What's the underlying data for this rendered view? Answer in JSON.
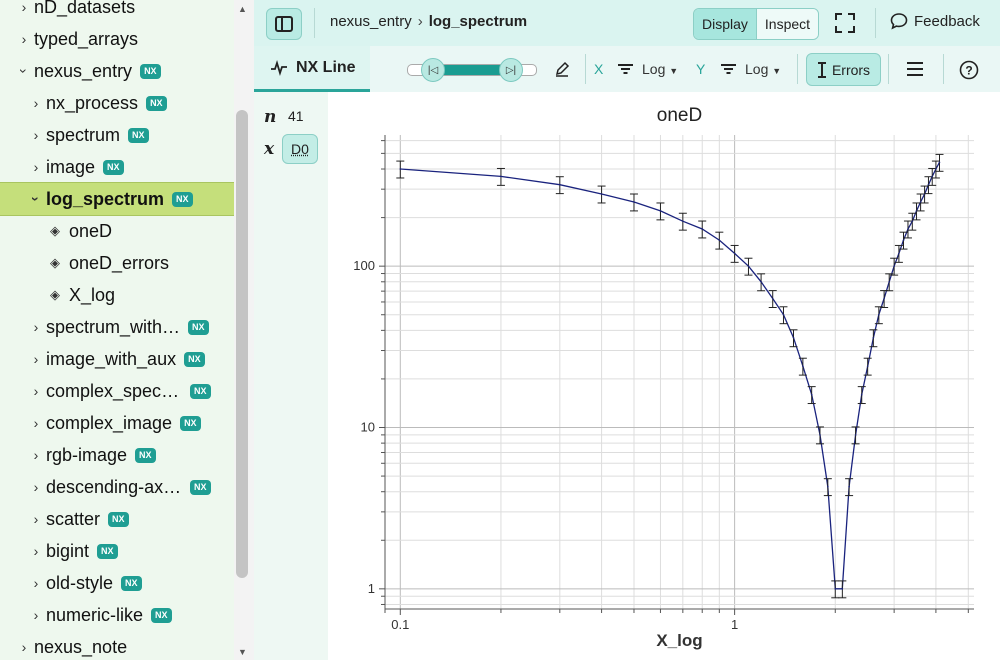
{
  "sidebar": {
    "items": [
      {
        "label": "nD_datasets",
        "indent": 0,
        "expanded": false,
        "nx": false,
        "kind": "group",
        "selected": false
      },
      {
        "label": "typed_arrays",
        "indent": 0,
        "expanded": false,
        "nx": false,
        "kind": "group",
        "selected": false
      },
      {
        "label": "nexus_entry",
        "indent": 0,
        "expanded": true,
        "nx": true,
        "kind": "group",
        "selected": false
      },
      {
        "label": "nx_process",
        "indent": 1,
        "expanded": false,
        "nx": true,
        "kind": "group",
        "selected": false
      },
      {
        "label": "spectrum",
        "indent": 1,
        "expanded": false,
        "nx": true,
        "kind": "group",
        "selected": false
      },
      {
        "label": "image",
        "indent": 1,
        "expanded": false,
        "nx": true,
        "kind": "group",
        "selected": false
      },
      {
        "label": "log_spectrum",
        "indent": 1,
        "expanded": true,
        "nx": true,
        "kind": "group",
        "selected": true
      },
      {
        "label": "oneD",
        "indent": 1,
        "expanded": false,
        "nx": false,
        "kind": "dataset",
        "selected": false
      },
      {
        "label": "oneD_errors",
        "indent": 1,
        "expanded": false,
        "nx": false,
        "kind": "dataset",
        "selected": false
      },
      {
        "label": "X_log",
        "indent": 1,
        "expanded": false,
        "nx": false,
        "kind": "dataset",
        "selected": false
      },
      {
        "label": "spectrum_with…",
        "indent": 1,
        "expanded": false,
        "nx": true,
        "kind": "group",
        "selected": false
      },
      {
        "label": "image_with_aux",
        "indent": 1,
        "expanded": false,
        "nx": true,
        "kind": "group",
        "selected": false
      },
      {
        "label": "complex_spect…",
        "indent": 1,
        "expanded": false,
        "nx": true,
        "kind": "group",
        "selected": false
      },
      {
        "label": "complex_image",
        "indent": 1,
        "expanded": false,
        "nx": true,
        "kind": "group",
        "selected": false
      },
      {
        "label": "rgb-image",
        "indent": 1,
        "expanded": false,
        "nx": true,
        "kind": "group",
        "selected": false
      },
      {
        "label": "descending-axes",
        "indent": 1,
        "expanded": false,
        "nx": true,
        "kind": "group",
        "selected": false
      },
      {
        "label": "scatter",
        "indent": 1,
        "expanded": false,
        "nx": true,
        "kind": "group",
        "selected": false
      },
      {
        "label": "bigint",
        "indent": 1,
        "expanded": false,
        "nx": true,
        "kind": "group",
        "selected": false
      },
      {
        "label": "old-style",
        "indent": 1,
        "expanded": false,
        "nx": true,
        "kind": "group",
        "selected": false
      },
      {
        "label": "numeric-like",
        "indent": 1,
        "expanded": false,
        "nx": true,
        "kind": "group",
        "selected": false
      },
      {
        "label": "nexus_note",
        "indent": 0,
        "expanded": false,
        "nx": false,
        "kind": "group",
        "selected": false
      }
    ],
    "nx_badge": "NX"
  },
  "topbar": {
    "breadcrumb_parent": "nexus_entry",
    "breadcrumb_current": "log_spectrum",
    "display_label": "Display",
    "inspect_label": "Inspect",
    "feedback_label": "Feedback"
  },
  "toolbar": {
    "vis_tab_label": "NX Line",
    "x_axis_letter": "X",
    "x_scale": "Log",
    "y_axis_letter": "Y",
    "y_scale": "Log",
    "errors_label": "Errors"
  },
  "dims": {
    "n_label": "n",
    "n_value": "41",
    "x_label": "x",
    "x_value": "D0"
  },
  "colors": {
    "accent": "#1a9c91",
    "selected_item": "#c5df7b",
    "line": "#1a237e"
  },
  "chart_data": {
    "type": "line",
    "title": "oneD",
    "xlabel": "X_log",
    "ylabel": "",
    "xscale": "log",
    "yscale": "log",
    "grid": true,
    "xlim": [
      0.09,
      5.2
    ],
    "ylim": [
      0.75,
      650
    ],
    "x_tick_labels": [
      "0.1",
      "1"
    ],
    "y_tick_labels": [
      "1",
      "10",
      "100"
    ],
    "series": [
      {
        "x": [
          0.1,
          0.2,
          0.3,
          0.4,
          0.5,
          0.6,
          0.7,
          0.8,
          0.9,
          1.0,
          1.1,
          1.2,
          1.3,
          1.4,
          1.5,
          1.6,
          1.7,
          1.8,
          1.9,
          2.0,
          2.1,
          2.2,
          2.3,
          2.4,
          2.5,
          2.6,
          2.7,
          2.8,
          2.9,
          3.0,
          3.1,
          3.2,
          3.3,
          3.4,
          3.5,
          3.6,
          3.7,
          3.8,
          3.9,
          4.0,
          4.1
        ],
        "y": [
          400,
          360,
          320,
          280,
          250,
          220,
          190,
          170,
          145,
          120,
          100,
          80,
          63,
          50,
          36,
          24,
          16,
          9,
          4.3,
          1.0,
          1.0,
          4.3,
          9,
          16,
          24,
          36,
          50,
          63,
          80,
          100,
          120,
          145,
          170,
          190,
          220,
          250,
          280,
          320,
          360,
          400,
          440
        ],
        "error_relative": 0.12
      }
    ]
  }
}
